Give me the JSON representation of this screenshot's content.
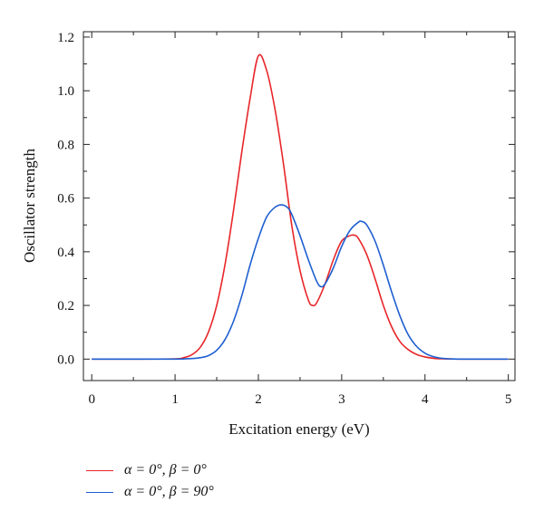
{
  "chart_data": {
    "type": "line",
    "title": "",
    "xlabel": "Excitation energy (eV)",
    "ylabel": "Oscillator strength",
    "xlim": [
      -0.1,
      5.08
    ],
    "ylim": [
      -0.08,
      1.22
    ],
    "xticks": [
      0,
      1,
      2,
      3,
      4,
      5
    ],
    "xtick_labels": [
      "0",
      "1",
      "2",
      "3",
      "4",
      "5"
    ],
    "yticks": [
      0.0,
      0.2,
      0.4,
      0.6,
      0.8,
      1.0,
      1.2
    ],
    "ytick_labels": [
      "0.0",
      "0.2",
      "0.4",
      "0.6",
      "0.8",
      "1.0",
      "1.2"
    ],
    "grid": false,
    "legend_position": "below",
    "series": [
      {
        "name": "α = 0°, β = 0°",
        "color": "#e8262a",
        "x": [
          0.0,
          0.5,
          1.0,
          1.1,
          1.2,
          1.3,
          1.4,
          1.5,
          1.6,
          1.7,
          1.8,
          1.9,
          2.0,
          2.1,
          2.2,
          2.3,
          2.4,
          2.5,
          2.6,
          2.65,
          2.7,
          2.8,
          2.9,
          3.0,
          3.1,
          3.15,
          3.2,
          3.3,
          3.4,
          3.5,
          3.6,
          3.7,
          3.8,
          3.9,
          4.0,
          4.1,
          4.2,
          4.4,
          4.6,
          5.0
        ],
        "y": [
          0.0,
          0.0,
          0.001,
          0.005,
          0.016,
          0.043,
          0.1,
          0.2,
          0.353,
          0.55,
          0.77,
          0.97,
          1.13,
          1.075,
          0.93,
          0.73,
          0.5,
          0.33,
          0.22,
          0.2,
          0.21,
          0.28,
          0.37,
          0.44,
          0.46,
          0.462,
          0.45,
          0.39,
          0.3,
          0.2,
          0.12,
          0.065,
          0.035,
          0.017,
          0.008,
          0.003,
          0.001,
          0.0,
          0.0,
          0.0
        ]
      },
      {
        "name": "α = 0°, β = 90°",
        "color": "#1f5fd0",
        "x": [
          0.0,
          0.5,
          1.0,
          1.2,
          1.3,
          1.4,
          1.5,
          1.6,
          1.7,
          1.8,
          1.9,
          2.0,
          2.1,
          2.2,
          2.28,
          2.35,
          2.4,
          2.5,
          2.6,
          2.7,
          2.75,
          2.8,
          2.9,
          3.0,
          3.1,
          3.2,
          3.24,
          3.3,
          3.4,
          3.5,
          3.6,
          3.7,
          3.8,
          3.9,
          4.0,
          4.1,
          4.2,
          4.3,
          4.4,
          4.6,
          5.0
        ],
        "y": [
          0.0,
          0.0,
          0.0,
          0.002,
          0.005,
          0.013,
          0.033,
          0.073,
          0.14,
          0.235,
          0.35,
          0.45,
          0.53,
          0.566,
          0.575,
          0.565,
          0.54,
          0.46,
          0.37,
          0.29,
          0.27,
          0.28,
          0.34,
          0.42,
          0.48,
          0.51,
          0.513,
          0.5,
          0.44,
          0.35,
          0.25,
          0.16,
          0.09,
          0.047,
          0.022,
          0.009,
          0.003,
          0.001,
          0.0,
          0.0,
          0.0
        ]
      }
    ]
  }
}
